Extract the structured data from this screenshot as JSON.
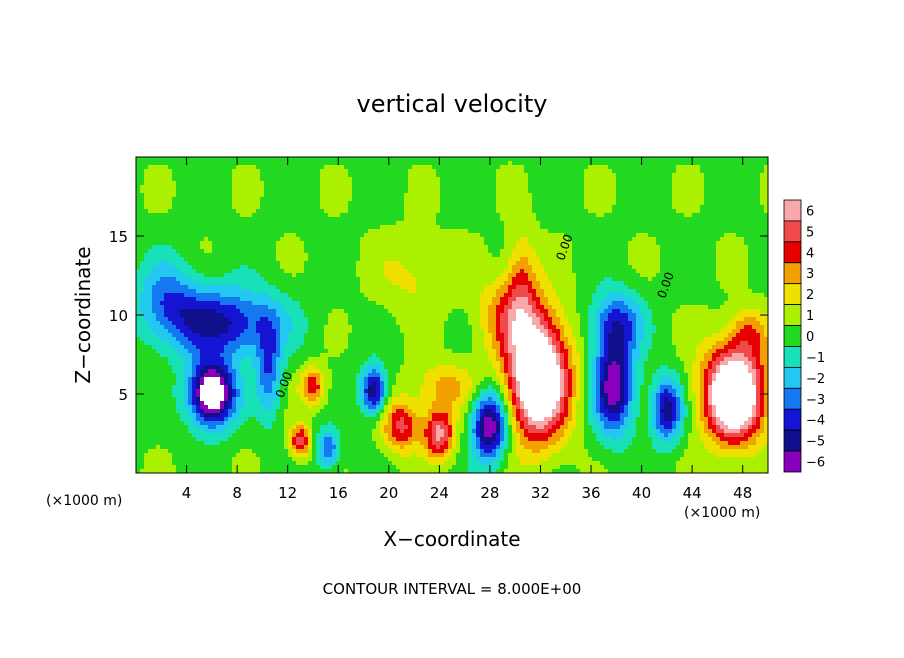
{
  "chart_data": {
    "type": "heatmap",
    "title": "vertical velocity",
    "xlabel": "X−coordinate",
    "ylabel": "Z−coordinate",
    "x_unit_left": "(×1000 m)",
    "x_unit_right": "(×1000 m)",
    "footer": "CONTOUR INTERVAL = 8.000E+00",
    "xlim": [
      0,
      50
    ],
    "ylim": [
      0,
      20
    ],
    "x_ticks": [
      4,
      8,
      12,
      16,
      20,
      24,
      28,
      32,
      36,
      40,
      44,
      48
    ],
    "x_tick_labels": [
      "4",
      "8",
      "12",
      "16",
      "20",
      "24",
      "28",
      "32",
      "36",
      "40",
      "44",
      "48"
    ],
    "y_ticks": [
      5,
      10,
      15
    ],
    "y_tick_labels": [
      "5",
      "10",
      "15"
    ],
    "contour_labels": [
      {
        "text": "0.00",
        "x": 12.0,
        "y": 5.5
      },
      {
        "text": "0.00",
        "x": 34.2,
        "y": 14.2
      },
      {
        "text": "0.00",
        "x": 42.2,
        "y": 11.8
      }
    ],
    "colorbar": {
      "levels": [
        6,
        5,
        4,
        3,
        2,
        1,
        0,
        -1,
        -2,
        -3,
        -4,
        -5,
        -6
      ],
      "labels": [
        "6",
        "5",
        "4",
        "3",
        "2",
        "1",
        "0",
        "−1",
        "−2",
        "−3",
        "−4",
        "−5",
        "−6"
      ],
      "colors": [
        "#f8a8a8",
        "#f24a4a",
        "#e60000",
        "#f2a100",
        "#f0e000",
        "#aaf000",
        "#22d820",
        "#18e0b8",
        "#22c8f0",
        "#1478f0",
        "#1414d2",
        "#10108c",
        "#8800bb"
      ]
    },
    "features": [
      {
        "x": 6.0,
        "z": 5.0,
        "w": -9.0,
        "sx": 1.8,
        "sz": 2.0
      },
      {
        "x": 7.0,
        "z": 9.5,
        "w": -5.0,
        "sx": 4.5,
        "sz": 2.2
      },
      {
        "x": 2.5,
        "z": 11.0,
        "w": -3.0,
        "sx": 2.5,
        "sz": 2.5
      },
      {
        "x": 10.5,
        "z": 6.5,
        "w": -3.5,
        "sx": 1.0,
        "sz": 3.0
      },
      {
        "x": 13.0,
        "z": 2.0,
        "w": 5.0,
        "sx": 0.8,
        "sz": 1.0
      },
      {
        "x": 14.0,
        "z": 5.5,
        "w": 4.0,
        "sx": 1.0,
        "sz": 1.2
      },
      {
        "x": 15.2,
        "z": 1.5,
        "w": -4.0,
        "sx": 0.9,
        "sz": 1.2
      },
      {
        "x": 18.8,
        "z": 5.2,
        "w": -6.0,
        "sx": 1.0,
        "sz": 1.5
      },
      {
        "x": 21.0,
        "z": 3.0,
        "w": 4.5,
        "sx": 1.5,
        "sz": 1.6
      },
      {
        "x": 24.0,
        "z": 2.5,
        "w": 5.5,
        "sx": 1.2,
        "sz": 1.6
      },
      {
        "x": 24.5,
        "z": 5.5,
        "w": 2.5,
        "sx": 2.5,
        "sz": 1.5
      },
      {
        "x": 28.0,
        "z": 3.0,
        "w": -7.0,
        "sx": 1.4,
        "sz": 2.2
      },
      {
        "x": 31.8,
        "z": 6.0,
        "w": 10.0,
        "sx": 2.4,
        "sz": 3.8
      },
      {
        "x": 29.5,
        "z": 10.0,
        "w": 3.0,
        "sx": 2.5,
        "sz": 2.5
      },
      {
        "x": 30.5,
        "z": 12.5,
        "w": 2.5,
        "sx": 1.2,
        "sz": 3.0
      },
      {
        "x": 37.8,
        "z": 5.5,
        "w": -6.5,
        "sx": 1.6,
        "sz": 3.0
      },
      {
        "x": 38.0,
        "z": 9.5,
        "w": -4.0,
        "sx": 2.0,
        "sz": 2.0
      },
      {
        "x": 42.0,
        "z": 4.0,
        "w": -5.5,
        "sx": 1.2,
        "sz": 2.0
      },
      {
        "x": 47.3,
        "z": 5.0,
        "w": 10.0,
        "sx": 2.4,
        "sz": 3.0
      },
      {
        "x": 48.5,
        "z": 9.0,
        "w": 2.5,
        "sx": 1.5,
        "sz": 1.5
      },
      {
        "x": 22.0,
        "z": 12.5,
        "w": 1.5,
        "sx": 3.0,
        "sz": 2.5
      }
    ]
  }
}
